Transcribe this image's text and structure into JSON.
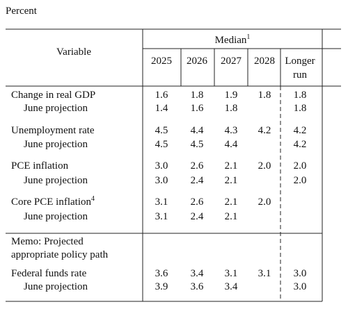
{
  "unit": "Percent",
  "table": {
    "variable_header": "Variable",
    "median_header": {
      "text": "Median",
      "note": "1"
    },
    "columns": [
      "2025",
      "2026",
      "2027",
      "2028",
      "Longer run"
    ],
    "rows": [
      {
        "label": {
          "text": "Change in real GDP"
        },
        "values": [
          "1.6",
          "1.8",
          "1.9",
          "1.8",
          "1.8"
        ]
      },
      {
        "label": {
          "text": "June projection"
        },
        "values": [
          "1.4",
          "1.6",
          "1.8",
          null,
          "1.8"
        ]
      },
      {
        "label": {
          "text": "Unemployment rate"
        },
        "values": [
          "4.5",
          "4.4",
          "4.3",
          "4.2",
          "4.2"
        ]
      },
      {
        "label": {
          "text": "June projection"
        },
        "values": [
          "4.5",
          "4.5",
          "4.4",
          null,
          "4.2"
        ]
      },
      {
        "label": {
          "text": "PCE inflation"
        },
        "values": [
          "3.0",
          "2.6",
          "2.1",
          "2.0",
          "2.0"
        ]
      },
      {
        "label": {
          "text": "June projection"
        },
        "values": [
          "3.0",
          "2.4",
          "2.1",
          null,
          "2.0"
        ]
      },
      {
        "label": {
          "text": "Core PCE inflation",
          "note": "4"
        },
        "values": [
          "3.1",
          "2.6",
          "2.1",
          "2.0",
          null
        ]
      },
      {
        "label": {
          "text": "June projection"
        },
        "values": [
          "3.1",
          "2.4",
          "2.1",
          null,
          null
        ]
      },
      {
        "label": {
          "text": "Federal funds rate"
        },
        "values": [
          "3.6",
          "3.4",
          "3.1",
          "3.1",
          "3.0"
        ]
      },
      {
        "label": {
          "text": "June projection"
        },
        "values": [
          "3.9",
          "3.6",
          "3.4",
          null,
          "3.0"
        ]
      }
    ],
    "memo": [
      "Memo: Projected",
      "appropriate policy path"
    ]
  }
}
